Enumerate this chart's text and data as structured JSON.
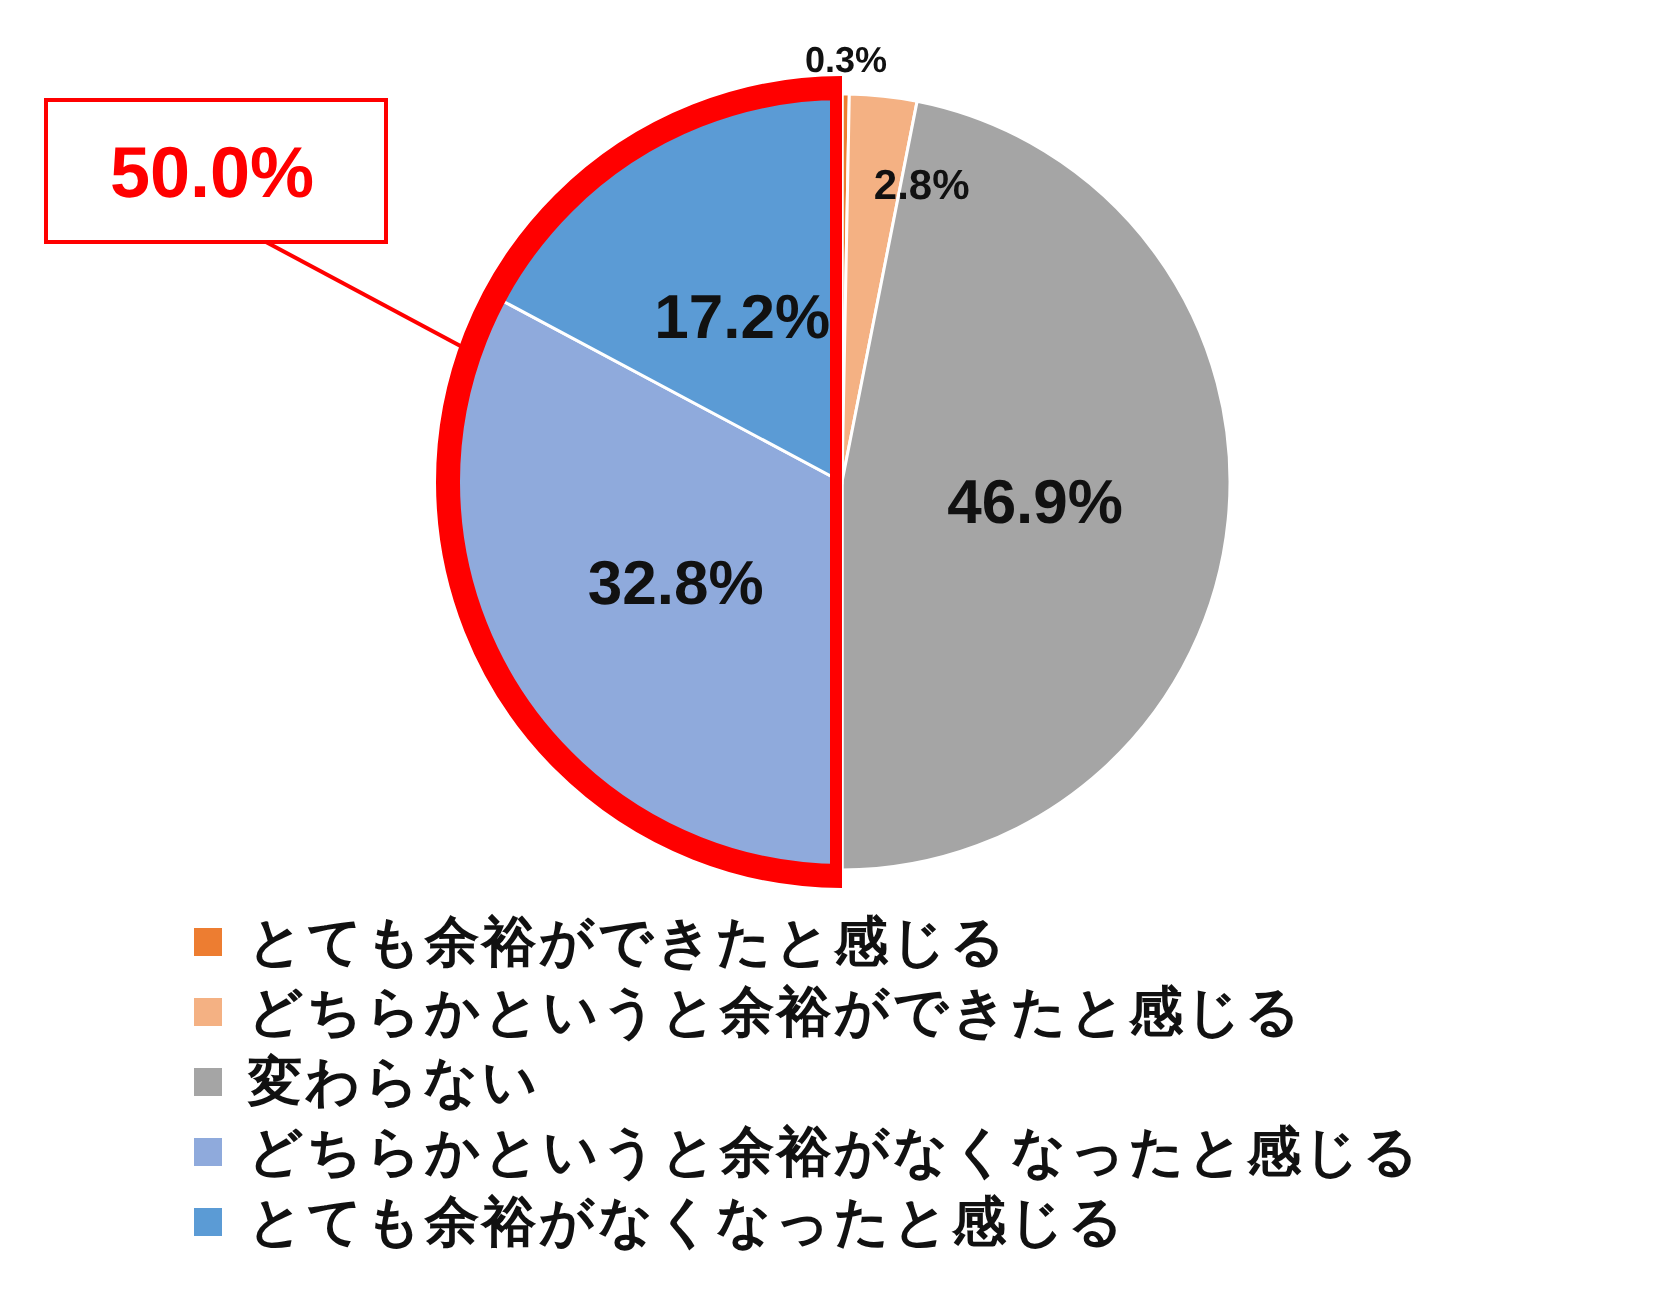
{
  "chart_data": {
    "type": "pie",
    "categories": [
      "とても余裕ができたと感じる",
      "どちらかというと余裕ができたと感じる",
      "変わらない",
      "どちらかというと余裕がなくなったと感じる",
      "とても余裕がなくなったと感じる"
    ],
    "values": [
      0.3,
      2.8,
      46.9,
      32.8,
      17.2
    ],
    "colors": [
      "#ed7d31",
      "#f4b183",
      "#a5a5a5",
      "#8faadc",
      "#5b9bd5"
    ],
    "value_labels": [
      "0.3%",
      "2.8%",
      "46.9%",
      "32.8%",
      "17.2%"
    ],
    "legend": "bottom",
    "annotations": [
      "50.0%"
    ]
  }
}
